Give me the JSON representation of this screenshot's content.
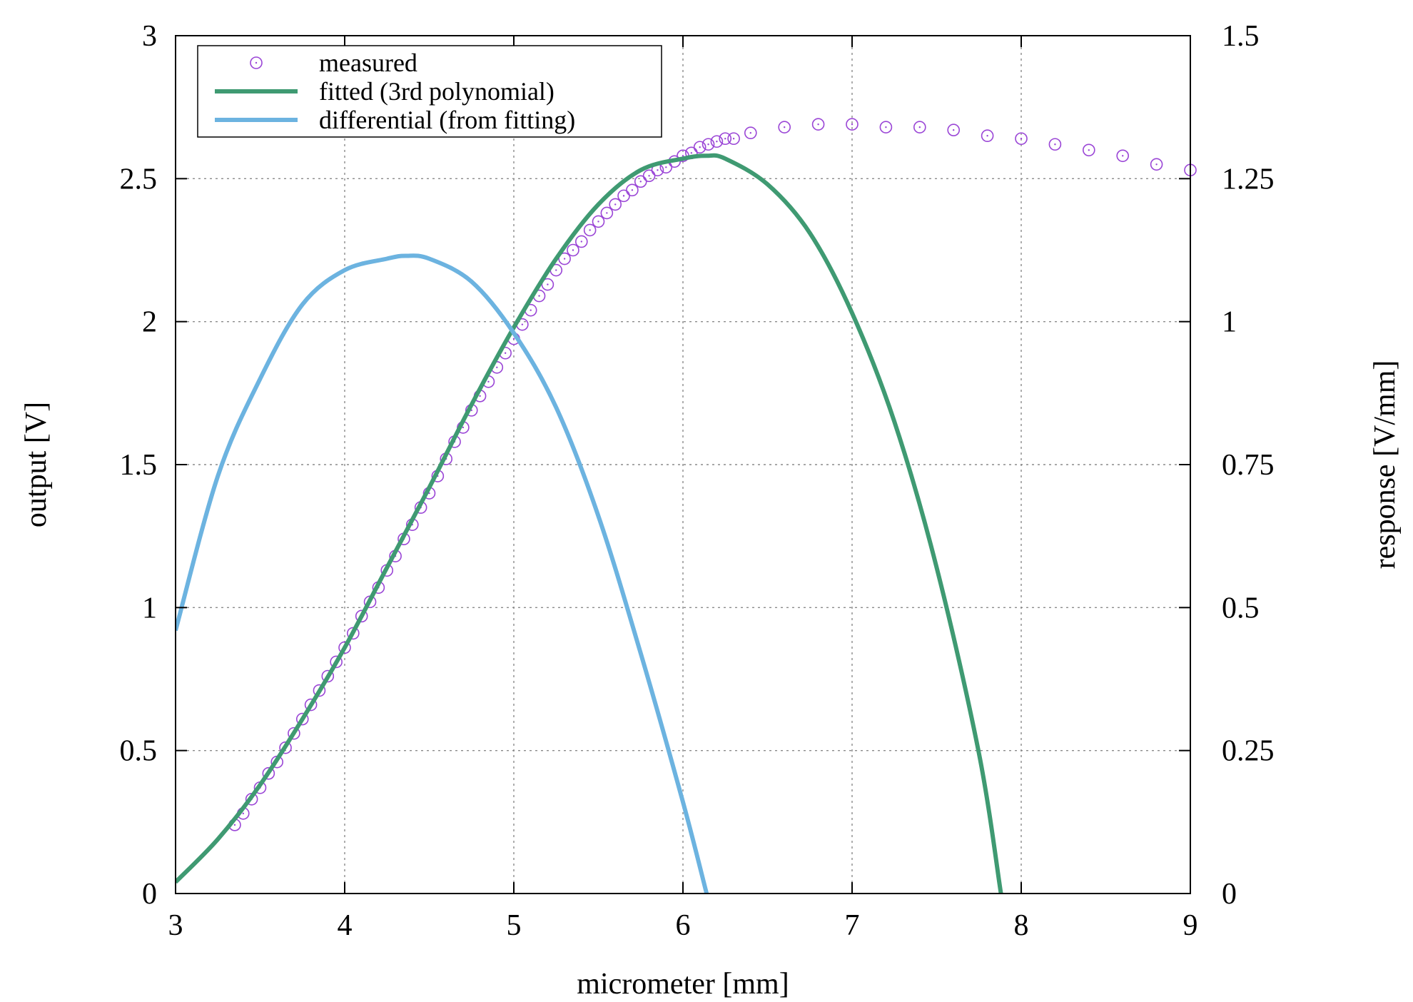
{
  "chart_data": {
    "type": "line",
    "title": "",
    "xlabel": "micrometer [mm]",
    "ylabel": "output [V]",
    "y2label": "response [V/mm]",
    "xlim": [
      3,
      9
    ],
    "ylim": [
      0,
      3
    ],
    "y2lim": [
      0,
      1.5
    ],
    "xticks": [
      "3",
      "4",
      "5",
      "6",
      "7",
      "8",
      "9"
    ],
    "yticks": [
      "0",
      "0.5",
      "1",
      "1.5",
      "2",
      "2.5",
      "3"
    ],
    "y2ticks": [
      "0",
      "0.25",
      "0.5",
      "0.75",
      "1",
      "1.25",
      "1.5"
    ],
    "grid": true,
    "legend_position": "top-left",
    "series": [
      {
        "name": "measured",
        "kind": "scatter",
        "axis": "left",
        "color": "#9a45d6",
        "marker": "circle",
        "x": [
          3.35,
          3.4,
          3.45,
          3.5,
          3.55,
          3.6,
          3.65,
          3.7,
          3.75,
          3.8,
          3.85,
          3.9,
          3.95,
          4.0,
          4.05,
          4.1,
          4.15,
          4.2,
          4.25,
          4.3,
          4.35,
          4.4,
          4.45,
          4.5,
          4.55,
          4.6,
          4.65,
          4.7,
          4.75,
          4.8,
          4.85,
          4.9,
          4.95,
          5.0,
          5.05,
          5.1,
          5.15,
          5.2,
          5.25,
          5.3,
          5.35,
          5.4,
          5.45,
          5.5,
          5.55,
          5.6,
          5.65,
          5.7,
          5.75,
          5.8,
          5.85,
          5.9,
          5.95,
          6.0,
          6.05,
          6.1,
          6.15,
          6.2,
          6.25,
          6.3,
          6.4,
          6.6,
          6.8,
          7.0,
          7.2,
          7.4,
          7.6,
          7.8,
          8.0,
          8.2,
          8.4,
          8.6,
          8.8,
          9.0
        ],
        "y": [
          0.24,
          0.28,
          0.33,
          0.37,
          0.42,
          0.46,
          0.51,
          0.56,
          0.61,
          0.66,
          0.71,
          0.76,
          0.81,
          0.86,
          0.91,
          0.97,
          1.02,
          1.07,
          1.13,
          1.18,
          1.24,
          1.29,
          1.35,
          1.4,
          1.46,
          1.52,
          1.58,
          1.63,
          1.69,
          1.74,
          1.79,
          1.84,
          1.89,
          1.94,
          1.99,
          2.04,
          2.09,
          2.13,
          2.18,
          2.22,
          2.25,
          2.28,
          2.32,
          2.35,
          2.38,
          2.41,
          2.44,
          2.46,
          2.49,
          2.51,
          2.53,
          2.54,
          2.56,
          2.58,
          2.59,
          2.61,
          2.62,
          2.63,
          2.64,
          2.64,
          2.66,
          2.68,
          2.69,
          2.69,
          2.68,
          2.68,
          2.67,
          2.65,
          2.64,
          2.62,
          2.6,
          2.58,
          2.55,
          2.53
        ]
      },
      {
        "name": "fitted (3rd polynomial)",
        "kind": "line",
        "axis": "left",
        "color": "#3f9a72",
        "x": [
          3.0,
          3.25,
          3.5,
          3.75,
          4.0,
          4.25,
          4.5,
          4.75,
          5.0,
          5.25,
          5.5,
          5.75,
          6.0,
          6.14,
          6.25,
          6.5,
          6.75,
          7.0,
          7.25,
          7.5,
          7.75,
          7.88
        ],
        "y": [
          0.04,
          0.19,
          0.38,
          0.61,
          0.86,
          1.14,
          1.42,
          1.71,
          1.98,
          2.22,
          2.41,
          2.53,
          2.57,
          2.58,
          2.57,
          2.48,
          2.31,
          2.03,
          1.65,
          1.14,
          0.49,
          0.0
        ]
      },
      {
        "name": "differential (from fitting)",
        "kind": "line",
        "axis": "right",
        "color": "#6cb3e0",
        "x": [
          3.0,
          3.25,
          3.5,
          3.75,
          4.0,
          4.25,
          4.36,
          4.5,
          4.75,
          5.0,
          5.25,
          5.5,
          5.75,
          6.0,
          6.14
        ],
        "y": [
          0.46,
          0.73,
          0.9,
          1.03,
          1.09,
          1.11,
          1.115,
          1.11,
          1.07,
          0.98,
          0.85,
          0.66,
          0.42,
          0.16,
          0.0
        ]
      }
    ]
  }
}
